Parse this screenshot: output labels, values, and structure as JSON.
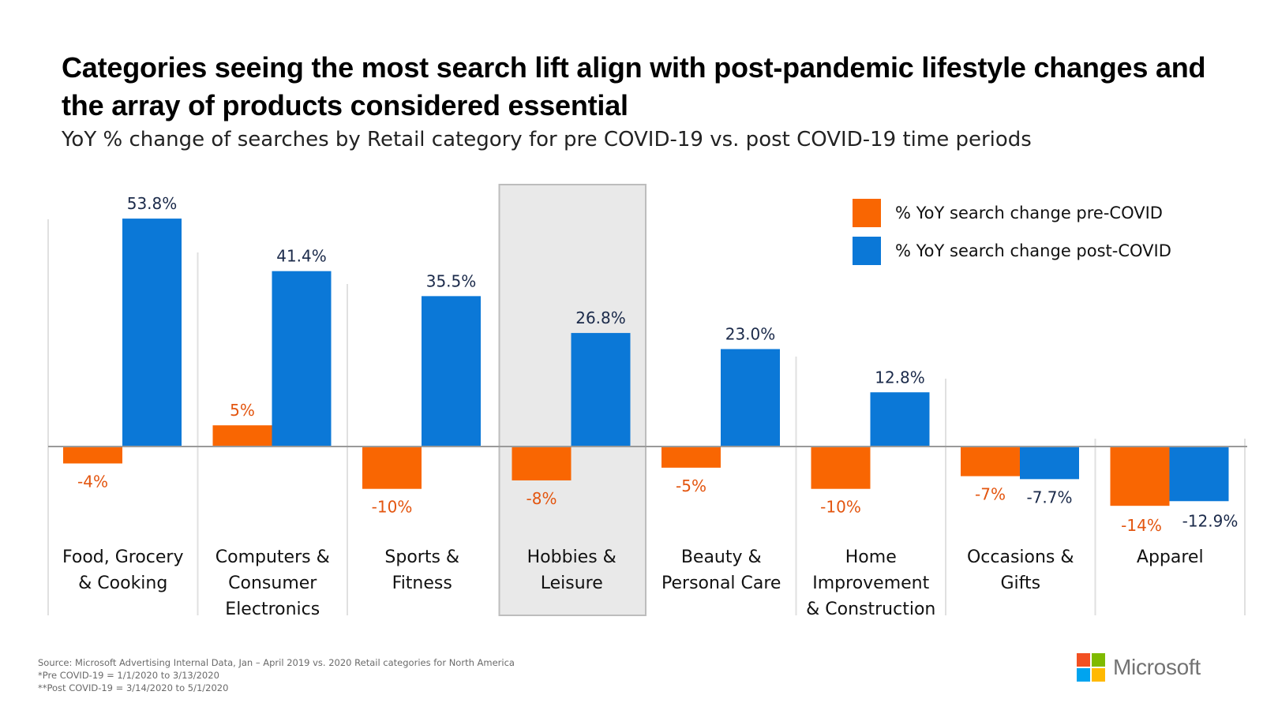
{
  "header": {
    "title": "Categories seeing the most search lift align with post-pandemic lifestyle changes and the array of products considered essential",
    "subtitle": "YoY % change of searches by Retail category for pre COVID-19 vs. post COVID-19 time periods"
  },
  "legend": {
    "items": [
      {
        "label": "% YoY search change pre-COVID",
        "color": "#F96602"
      },
      {
        "label": "% YoY search change post-COVID",
        "color": "#0B78D7"
      }
    ]
  },
  "chart_data": {
    "type": "bar",
    "title": "Categories seeing the most search lift align with post-pandemic lifestyle changes and the array of products considered essential",
    "subtitle": "YoY % change of searches by Retail category for pre COVID-19 vs. post COVID-19 time periods",
    "xlabel": "",
    "ylabel": "",
    "ylim": [
      -20,
      60
    ],
    "grid": false,
    "legend_position": "top-right",
    "highlighted_category": "Hobbies & Leisure",
    "categories": [
      [
        "Food, Grocery",
        "& Cooking"
      ],
      [
        "Computers &",
        "Consumer",
        "Electronics"
      ],
      [
        "Sports &",
        "Fitness"
      ],
      [
        "Hobbies &",
        "Leisure"
      ],
      [
        "Beauty &",
        "Personal Care"
      ],
      [
        "Home",
        "Improvement",
        "& Construction"
      ],
      [
        "Occasions &",
        "Gifts"
      ],
      [
        "Apparel"
      ]
    ],
    "series": [
      {
        "name": "% YoY search change pre-COVID",
        "color": "#F96602",
        "label_color": "#E3550F",
        "values": [
          -4,
          5,
          -10,
          -8,
          -5,
          -10,
          -7,
          -14
        ],
        "labels": [
          "-4%",
          "5%",
          "-10%",
          "-8%",
          "-5%",
          "-10%",
          "-7%",
          "-14%"
        ]
      },
      {
        "name": "% YoY search change post-COVID",
        "color": "#0B78D7",
        "label_color": "#1B2A4A",
        "values": [
          53.8,
          41.4,
          35.5,
          26.8,
          23.0,
          12.8,
          -7.7,
          -12.9
        ],
        "labels": [
          "53.8%",
          "41.4%",
          "35.5%",
          "26.8%",
          "23.0%",
          "12.8%",
          "-7.7%",
          "-12.9%"
        ]
      }
    ]
  },
  "footer": {
    "source": "Source: Microsoft Advertising Internal Data, Jan – April 2019 vs. 2020 Retail categories for North America",
    "note_pre": "*Pre COVID-19 = 1/1/2020 to 3/13/2020",
    "note_post": "**Post COVID-19 = 3/14/2020 to 5/1/2020"
  },
  "logo": {
    "text": "Microsoft",
    "colors": [
      "#F25022",
      "#7FBA00",
      "#00A4EF",
      "#FFB900"
    ]
  }
}
